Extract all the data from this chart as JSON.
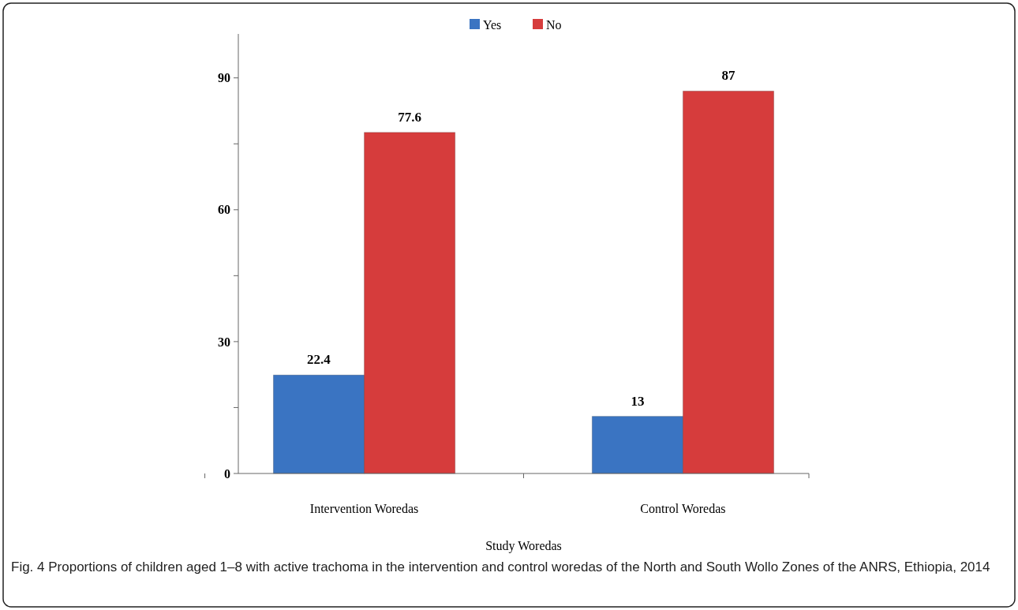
{
  "chart_data": {
    "type": "bar",
    "xlabel": "Study Woredas",
    "categories": [
      "Intervention Woredas",
      "Control Woredas"
    ],
    "series": [
      {
        "name": "Yes",
        "color": "#3a74c2",
        "values": [
          22.4,
          13
        ]
      },
      {
        "name": "No",
        "color": "#d63c3c",
        "values": [
          77.6,
          87
        ]
      }
    ],
    "ylim": [
      0,
      100
    ],
    "yticks": [
      0,
      {
        "value": 15,
        "label": null
      },
      30,
      {
        "value": 45,
        "label": null
      },
      60,
      {
        "value": 75,
        "label": null
      },
      90
    ],
    "data_labels": true,
    "legend": "top",
    "grid": false,
    "annotations": [
      "Fig. 4 Proportions of children aged 1–8 with active trachoma in the intervention and control woredas of the North and South Wollo Zones of the ANRS, Ethiopia, 2014"
    ]
  }
}
